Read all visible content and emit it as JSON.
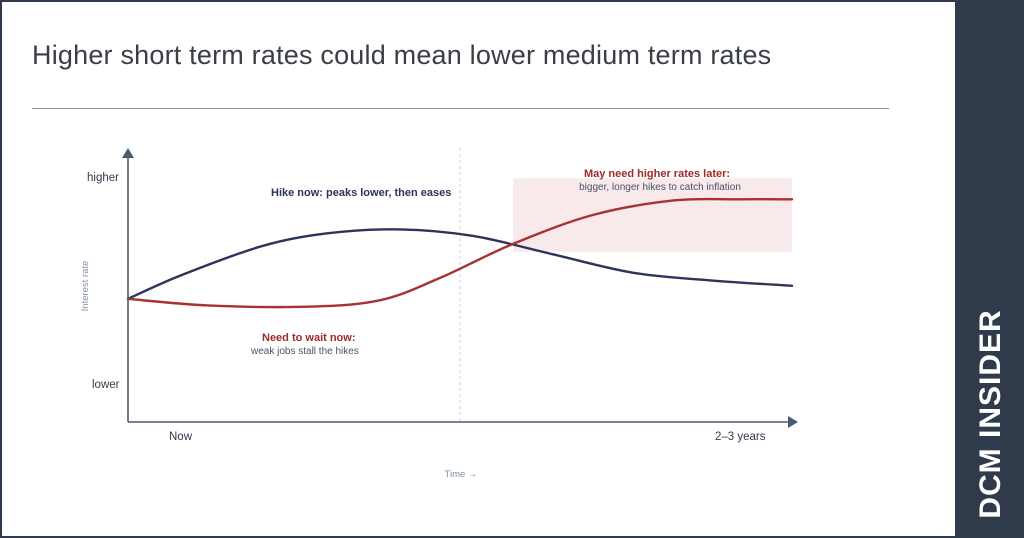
{
  "header": {
    "title": "Higher short term rates could mean lower medium term rates"
  },
  "brand": {
    "name": "DCM INSIDER"
  },
  "colors": {
    "navy_line": "#2d3459",
    "red_line": "#a83232",
    "highlight_fill": "#f8e9ea",
    "axis": "#4a5a6e",
    "sidebar": "#2f3b4a"
  },
  "chart_data": {
    "type": "line",
    "xlabel": "Time →",
    "ylabel": "Interest rate",
    "x_ticks": [
      "Now",
      "2–3 years"
    ],
    "y_ticks": [
      "lower",
      "higher"
    ],
    "xlim": [
      0,
      1
    ],
    "ylim": [
      0,
      1
    ],
    "series": [
      {
        "key": "hike_now",
        "color": "#2d3459",
        "points": [
          [
            0.0,
            0.47
          ],
          [
            0.08,
            0.56
          ],
          [
            0.2,
            0.67
          ],
          [
            0.3,
            0.72
          ],
          [
            0.41,
            0.735
          ],
          [
            0.52,
            0.71
          ],
          [
            0.64,
            0.64
          ],
          [
            0.76,
            0.57
          ],
          [
            0.88,
            0.54
          ],
          [
            1.0,
            0.52
          ]
        ]
      },
      {
        "key": "wait_now",
        "color": "#a83232",
        "points": [
          [
            0.0,
            0.47
          ],
          [
            0.12,
            0.445
          ],
          [
            0.27,
            0.44
          ],
          [
            0.38,
            0.465
          ],
          [
            0.47,
            0.55
          ],
          [
            0.58,
            0.68
          ],
          [
            0.7,
            0.79
          ],
          [
            0.82,
            0.845
          ],
          [
            0.92,
            0.85
          ],
          [
            1.0,
            0.85
          ]
        ]
      }
    ],
    "highlight_region": {
      "x": [
        0.58,
        1.0
      ],
      "y": [
        0.65,
        0.93
      ]
    },
    "divider_x": 0.5,
    "annotations": [
      {
        "key": "hike",
        "title": "Hike now: peaks lower, then eases",
        "subtitle": ""
      },
      {
        "key": "wait",
        "title": "Need to wait now:",
        "subtitle": "weak jobs stall the hikes"
      },
      {
        "key": "later",
        "title": "May need higher rates later:",
        "subtitle": "bigger, longer hikes to catch inflation"
      }
    ]
  }
}
